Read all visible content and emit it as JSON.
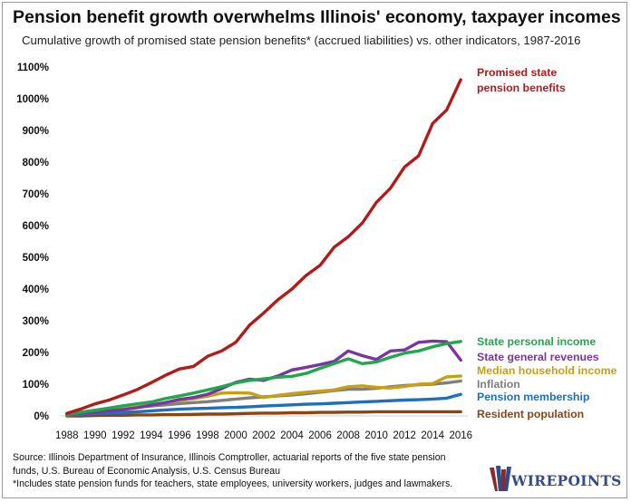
{
  "title": "Pension benefit growth overwhelms Illinois' economy, taxpayer incomes",
  "subtitle": "Cumulative growth of promised state pension benefits* (accrued liabilities) vs. other indicators, 1987-2016",
  "source_lines": [
    "Source: Illinois Department of Insurance, Illinois Comptroller, actuarial reports of the five state pension",
    "funds, U.S. Bureau of Economic Analysis, U.S. Census Bureau",
    "*Includes state pension funds for teachers, state employees, university workers, judges and lawmakers."
  ],
  "logo_text": "WIREPOINTS",
  "chart_data": {
    "type": "line",
    "grid": false,
    "legend": "direct labels at right",
    "ylim": [
      0,
      1100
    ],
    "yticks": [
      0,
      100,
      200,
      300,
      400,
      500,
      600,
      700,
      800,
      900,
      1000,
      1100
    ],
    "ytick_labels": [
      "0%",
      "100%",
      "200%",
      "300%",
      "400%",
      "500%",
      "600%",
      "700%",
      "800%",
      "900%",
      "1000%",
      "1100%"
    ],
    "xlim": [
      1987.5,
      2016.5
    ],
    "xticks": [
      1988,
      1990,
      1992,
      1994,
      1996,
      1998,
      2000,
      2002,
      2004,
      2006,
      2008,
      2010,
      2012,
      2014,
      2016
    ],
    "xtick_labels": [
      "1988",
      "1990",
      "1992",
      "1994",
      "1996",
      "1998",
      "2000",
      "2002",
      "2004",
      "2006",
      "2008",
      "2010",
      "2012",
      "2014",
      "2016"
    ],
    "x": [
      1988,
      1989,
      1990,
      1991,
      1992,
      1993,
      1994,
      1995,
      1996,
      1997,
      1998,
      1999,
      2000,
      2001,
      2002,
      2003,
      2004,
      2005,
      2006,
      2007,
      2008,
      2009,
      2010,
      2011,
      2012,
      2013,
      2014,
      2015,
      2016
    ],
    "series": [
      {
        "name": "Promised state pension benefits",
        "label_lines": [
          "Promised state",
          "pension benefits"
        ],
        "color": "#b31b1b",
        "values": [
          8,
          22,
          38,
          50,
          66,
          83,
          105,
          128,
          148,
          156,
          188,
          205,
          232,
          287,
          325,
          366,
          400,
          443,
          475,
          532,
          565,
          608,
          673,
          718,
          785,
          820,
          922,
          965,
          1060
        ]
      },
      {
        "name": "State personal income",
        "color": "#1fa84c",
        "values": [
          5,
          12,
          18,
          25,
          32,
          38,
          44,
          55,
          63,
          72,
          82,
          92,
          104,
          112,
          117,
          122,
          125,
          134,
          150,
          165,
          180,
          165,
          170,
          185,
          198,
          205,
          218,
          228,
          235
        ]
      },
      {
        "name": "State general revenues",
        "color": "#7a35a0",
        "values": [
          4,
          8,
          12,
          16,
          20,
          26,
          34,
          42,
          52,
          58,
          68,
          86,
          106,
          116,
          112,
          126,
          145,
          153,
          162,
          172,
          205,
          190,
          178,
          205,
          208,
          232,
          236,
          234,
          176
        ]
      },
      {
        "name": "Median household income",
        "color": "#c7a012",
        "values": [
          4,
          10,
          14,
          18,
          22,
          28,
          35,
          42,
          48,
          54,
          62,
          72,
          73,
          72,
          58,
          65,
          70,
          75,
          78,
          82,
          92,
          95,
          90,
          88,
          93,
          100,
          102,
          123,
          126
        ]
      },
      {
        "name": "Inflation",
        "color": "#7f7f7f",
        "values": [
          3,
          7,
          12,
          17,
          22,
          27,
          31,
          35,
          39,
          42,
          45,
          49,
          53,
          57,
          60,
          63,
          66,
          70,
          75,
          80,
          84,
          84,
          87,
          92,
          96,
          98,
          100,
          104,
          110
        ]
      },
      {
        "name": "Pension membership",
        "color": "#1f6fbf",
        "values": [
          2,
          5,
          7,
          9,
          11,
          13,
          16,
          19,
          21,
          23,
          24,
          26,
          27,
          29,
          31,
          33,
          35,
          37,
          38,
          40,
          42,
          44,
          46,
          48,
          50,
          51,
          53,
          56,
          68
        ]
      },
      {
        "name": "Resident population",
        "color": "#8b4513",
        "values": [
          0,
          0,
          1,
          2,
          2,
          3,
          3,
          4,
          4,
          5,
          6,
          6,
          7,
          8,
          9,
          9,
          10,
          10,
          11,
          11,
          12,
          12,
          13,
          13,
          13,
          13,
          13,
          13,
          13
        ]
      }
    ]
  }
}
